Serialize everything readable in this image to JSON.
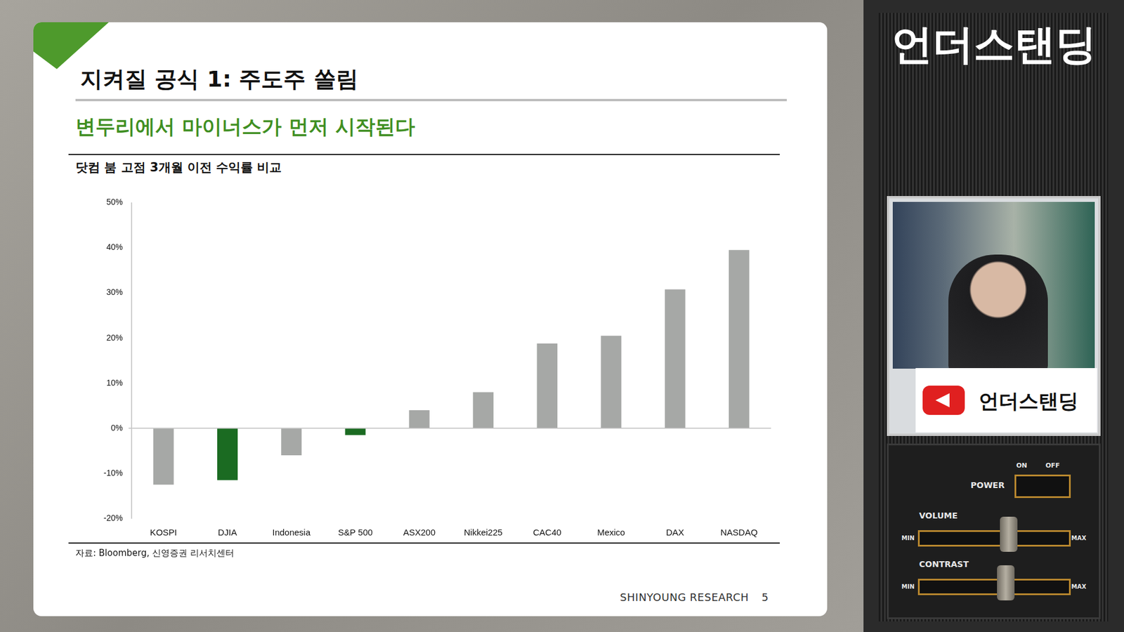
{
  "slide": {
    "title": "지켜질 공식 1: 주도주 쏠림",
    "subtitle": "변두리에서 마이너스가 먼저 시작된다",
    "source": "자료: Bloomberg, 신영증권 리서치센터",
    "footer": "SHINYOUNG RESEARCH",
    "page": 5
  },
  "side_panel": {
    "channel": "언더스탠딩",
    "badge": "언더스탠딩",
    "controls": {
      "power": "POWER",
      "on": "ON",
      "off": "OFF",
      "volume": "VOLUME",
      "contrast": "CONTRAST",
      "min": "MIN",
      "max": "MAX"
    }
  },
  "chart_data": {
    "type": "bar",
    "title": "닷컴 붐 고점 3개월 이전 수익률 비교",
    "categories": [
      "KOSPI",
      "DJIA",
      "Indonesia",
      "S&P 500",
      "ASX200",
      "Nikkei225",
      "CAC40",
      "Mexico",
      "DAX",
      "NASDAQ"
    ],
    "values": [
      -12.5,
      -11.5,
      -6,
      -1.5,
      4,
      8,
      18.8,
      20.5,
      30.8,
      39.5
    ],
    "colors": [
      "#a6a8a6",
      "#1b6b22",
      "#a6a8a6",
      "#1b6b22",
      "#a6a8a6",
      "#a6a8a6",
      "#a6a8a6",
      "#a6a8a6",
      "#a6a8a6",
      "#a6a8a6"
    ],
    "ylim": [
      -20,
      50
    ],
    "yticks": [
      {
        "value": -20,
        "label": "-20%"
      },
      {
        "value": -10,
        "label": "-10%"
      },
      {
        "value": 0,
        "label": "0%"
      },
      {
        "value": 10,
        "label": "10%"
      },
      {
        "value": 20,
        "label": "20%"
      },
      {
        "value": 30,
        "label": "30%"
      },
      {
        "value": 40,
        "label": "40%"
      },
      {
        "value": 50,
        "label": "50%"
      }
    ],
    "grid": false
  }
}
